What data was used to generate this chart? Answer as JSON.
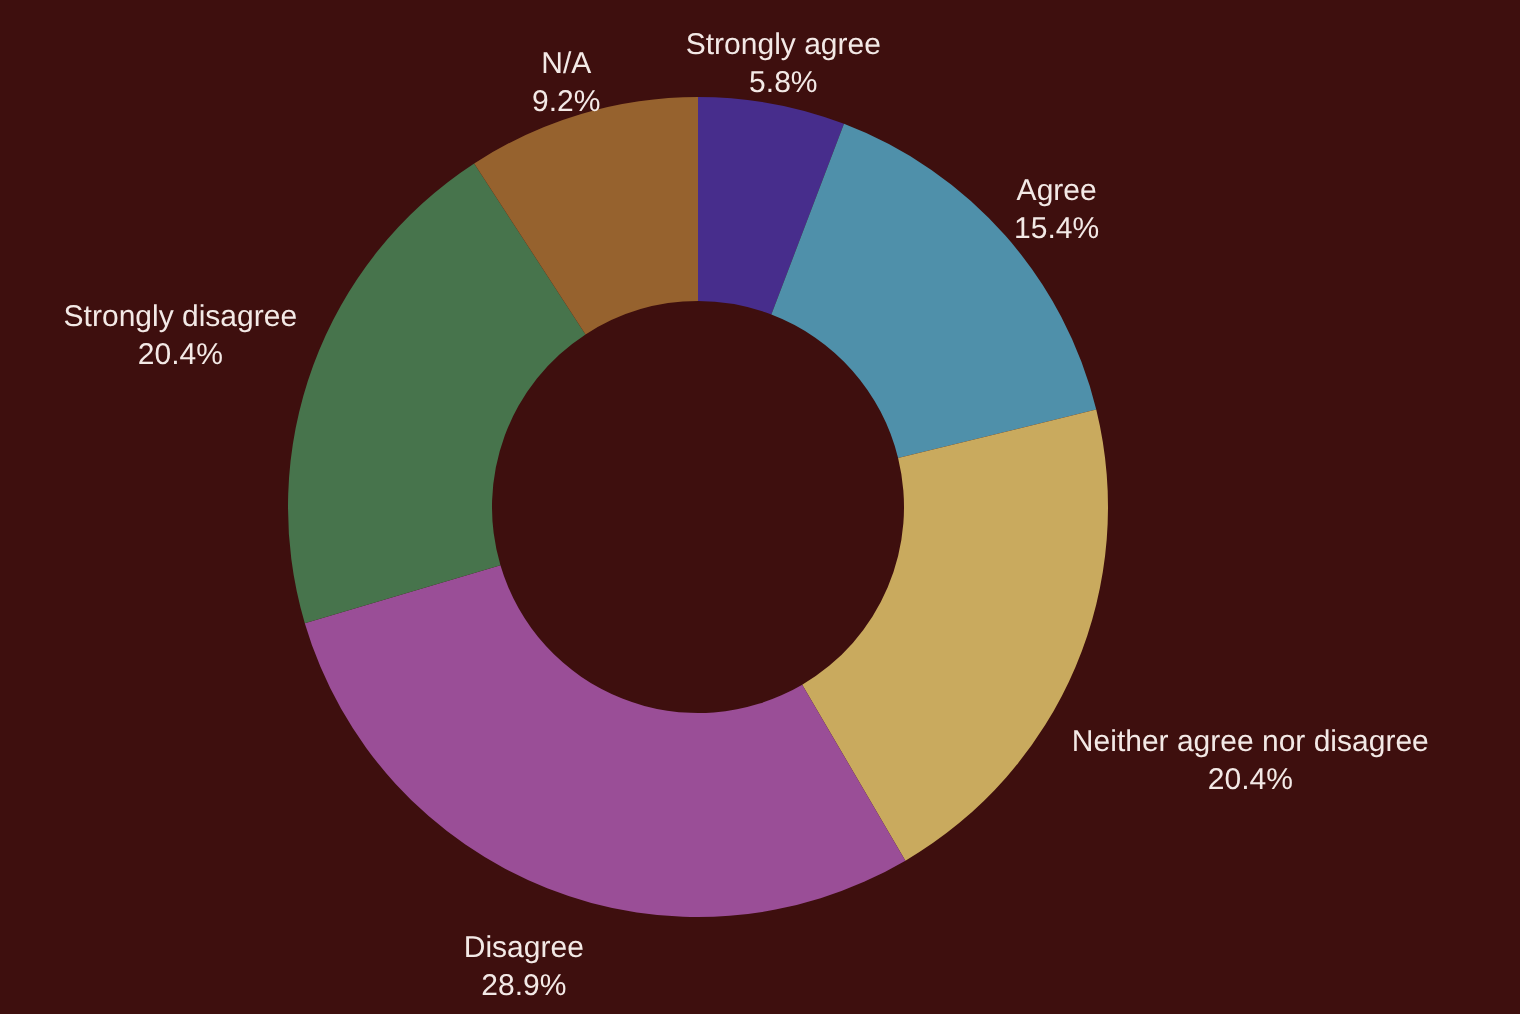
{
  "chart_data": {
    "type": "donut",
    "categories": [
      "Strongly agree",
      "Agree",
      "Neither agree nor disagree",
      "Disagree",
      "Strongly disagree",
      "N/A"
    ],
    "values": [
      5.8,
      15.4,
      20.4,
      28.9,
      20.4,
      9.2
    ],
    "value_labels": [
      "5.8%",
      "15.4%",
      "20.4%",
      "28.9%",
      "20.4%",
      "9.2%"
    ],
    "colors": [
      "#472d8c",
      "#4f90aa",
      "#c9aa5e",
      "#9a4e97",
      "#47744c",
      "#96622e"
    ]
  }
}
